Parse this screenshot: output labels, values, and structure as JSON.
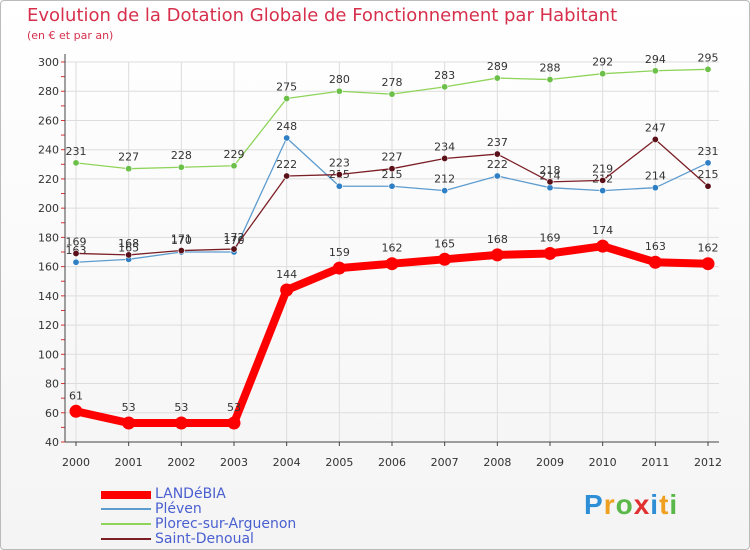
{
  "header": {
    "title": "Evolution de la Dotation Globale de Fonctionnement par Habitant",
    "subtitle": "(en € et par an)"
  },
  "legend": {
    "items": [
      {
        "label": "LANDéBIA",
        "color": "#ff0000"
      },
      {
        "label": "Pléven",
        "color": "#5d9ccf"
      },
      {
        "label": "Plorec-sur-Arguenon",
        "color": "#8fd45a"
      },
      {
        "label": "Saint-Denoual",
        "color": "#7b1f26"
      }
    ]
  },
  "logo": {
    "letters": [
      {
        "ch": "P",
        "color": "#2f8fd6"
      },
      {
        "ch": "r",
        "color": "#f0a020"
      },
      {
        "ch": "o",
        "color": "#5ab84a"
      },
      {
        "ch": "x",
        "color": "#e03030"
      },
      {
        "ch": "i",
        "color": "#2f8fd6"
      },
      {
        "ch": "t",
        "color": "#f0a020"
      },
      {
        "ch": "i",
        "color": "#5ab84a"
      }
    ]
  },
  "chart_data": {
    "type": "line",
    "title": "Evolution de la Dotation Globale de Fonctionnement par Habitant",
    "subtitle": "(en € et par an)",
    "xlabel": "",
    "ylabel": "",
    "x": [
      "2000",
      "2001",
      "2002",
      "2003",
      "2004",
      "2005",
      "2006",
      "2007",
      "2008",
      "2009",
      "2010",
      "2011",
      "2012"
    ],
    "ylim": [
      40,
      300
    ],
    "yticks": [
      40,
      60,
      80,
      100,
      120,
      140,
      160,
      180,
      200,
      220,
      240,
      260,
      280,
      300
    ],
    "grid": true,
    "series": [
      {
        "name": "Plorec-sur-Arguenon",
        "color": "#8fd45a",
        "dot": "#6cc04a",
        "values": [
          231,
          227,
          228,
          229,
          275,
          280,
          278,
          283,
          289,
          288,
          292,
          294,
          295
        ]
      },
      {
        "name": "Pléven",
        "color": "#5d9ccf",
        "dot": "#2f7fc4",
        "values": [
          163,
          165,
          170,
          170,
          248,
          215,
          215,
          212,
          222,
          214,
          212,
          214,
          231
        ]
      },
      {
        "name": "Saint-Denoual",
        "color": "#7b1f26",
        "dot": "#5a1018",
        "values": [
          169,
          168,
          171,
          172,
          222,
          223,
          227,
          234,
          237,
          218,
          219,
          247,
          215
        ]
      },
      {
        "name": "LANDéBIA",
        "color": "#ff0000",
        "dot": "#ff0000",
        "values": [
          61,
          53,
          53,
          53,
          144,
          159,
          162,
          165,
          168,
          169,
          174,
          163,
          162
        ]
      }
    ]
  }
}
